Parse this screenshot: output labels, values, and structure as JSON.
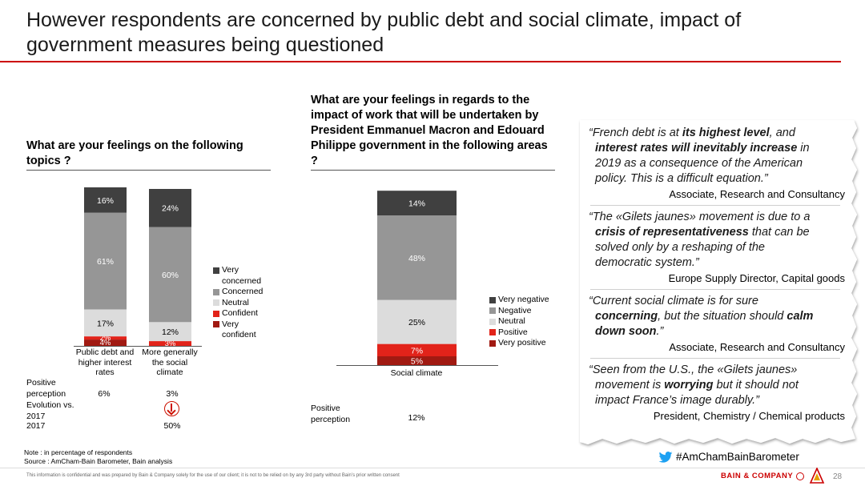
{
  "title": "However respondents are concerned by public debt and social climate, impact of government measures being questioned",
  "left_question": "What are your feelings on the following topics ?",
  "mid_question": "What are your feelings in regards to the impact of work that will be undertaken by President Emmanuel Macron and Edouard Philippe government in the following areas ?",
  "colors": {
    "very_dark": "#404040",
    "concerned": "#969696",
    "neutral": "#dcdcdc",
    "light_red": "#e2231a",
    "dark_red": "#a11a12",
    "accent_red": "#cc0000"
  },
  "left_table": {
    "positive_label": "Positive perception",
    "evolution_label": "Evolution vs. 2017",
    "year_label": "2017",
    "positive_values": [
      "6%",
      "3%"
    ],
    "year_values": [
      "",
      "50%"
    ],
    "evolution_icon": "down-arrow-circle-icon"
  },
  "mid_table": {
    "positive_label": "Positive perception",
    "positive_values": [
      "12%"
    ]
  },
  "left_legend": [
    "Very concerned",
    "Concerned",
    "Neutral",
    "Confident",
    "Very confident"
  ],
  "mid_legend": [
    "Very negative",
    "Negative",
    "Neutral",
    "Positive",
    "Very positive"
  ],
  "chart_data": [
    {
      "type": "bar",
      "stacked": true,
      "categories": [
        "Public debt and higher interest rates",
        "More generally the social climate"
      ],
      "series": [
        {
          "name": "Very confident",
          "values": [
            4,
            0
          ]
        },
        {
          "name": "Confident",
          "values": [
            2,
            3
          ]
        },
        {
          "name": "Neutral",
          "values": [
            17,
            12
          ]
        },
        {
          "name": "Concerned",
          "values": [
            61,
            60
          ]
        },
        {
          "name": "Very concerned",
          "values": [
            16,
            24
          ]
        }
      ],
      "labels": [
        [
          "4%",
          "2%",
          "17%",
          "61%",
          "16%"
        ],
        [
          "",
          "3%",
          "12%",
          "60%",
          "24%"
        ]
      ]
    },
    {
      "type": "bar",
      "stacked": true,
      "categories": [
        "Social climate"
      ],
      "series": [
        {
          "name": "Very positive",
          "values": [
            5
          ]
        },
        {
          "name": "Positive",
          "values": [
            7
          ]
        },
        {
          "name": "Neutral",
          "values": [
            25
          ]
        },
        {
          "name": "Negative",
          "values": [
            48
          ]
        },
        {
          "name": "Very negative",
          "values": [
            14
          ]
        }
      ],
      "labels": [
        [
          "5%",
          "7%",
          "25%",
          "48%",
          "14%"
        ]
      ]
    }
  ],
  "quotes": [
    {
      "lines": [
        [
          {
            "t": "“French debt is at "
          },
          {
            "t": "its highest level",
            "b": true
          },
          {
            "t": ", and"
          }
        ],
        [
          {
            "t": "interest rates will inevitably increase",
            "b": true
          },
          {
            "t": " in"
          }
        ],
        [
          {
            "t": "2019 as a consequence of the American"
          }
        ],
        [
          {
            "t": "policy. This is a difficult equation.”"
          }
        ]
      ],
      "attribution": "Associate, Research and Consultancy"
    },
    {
      "lines": [
        [
          {
            "t": "“The «Gilets jaunes» movement is due to a"
          }
        ],
        [
          {
            "t": "crisis of representativeness",
            "b": true
          },
          {
            "t": " that can be"
          }
        ],
        [
          {
            "t": "solved only by a reshaping of the"
          }
        ],
        [
          {
            "t": "democratic system.”"
          }
        ]
      ],
      "attribution": "Europe Supply Director, Capital goods"
    },
    {
      "lines": [
        [
          {
            "t": "“Current social climate is for sure"
          }
        ],
        [
          {
            "t": "concerning",
            "b": true
          },
          {
            "t": ", but the situation should "
          },
          {
            "t": "calm",
            "b": true
          }
        ],
        [
          {
            "t": "down soon",
            "b": true
          },
          {
            "t": ".”"
          }
        ]
      ],
      "attribution": "Associate, Research and Consultancy"
    },
    {
      "lines": [
        [
          {
            "t": "“Seen from the U.S., the  «Gilets jaunes»"
          }
        ],
        [
          {
            "t": "movement is "
          },
          {
            "t": "worrying",
            "b": true
          },
          {
            "t": " but it should not"
          }
        ],
        [
          {
            "t": "impact France’s image durably.”"
          }
        ]
      ],
      "attribution": "President, Chemistry / Chemical products"
    }
  ],
  "hashtag": "#AmChamBainBarometer",
  "note": "Note : in percentage of respondents",
  "source": "Source : AmCham-Bain Barometer, Bain analysis",
  "disclaimer": "This information is confidential and was prepared by Bain & Company solely for the use of our client; it is not to be relied on by any 3rd party without Bain’s prior written consent",
  "brand": "BAIN & COMPANY",
  "page_number": "28"
}
